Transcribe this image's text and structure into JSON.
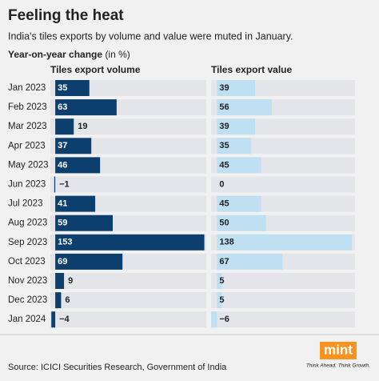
{
  "chart_data": {
    "type": "bar",
    "title": "Feeling the heat",
    "subtitle": "India's tiles exports by volume and value were muted in January.",
    "axis_label": "Year-on-year change",
    "axis_unit": "(in %)",
    "categories": [
      "Jan 2023",
      "Feb 2023",
      "Mar 2023",
      "Apr 2023",
      "May 2023",
      "Jun 2023",
      "Jul 2023",
      "Aug 2023",
      "Sep 2023",
      "Oct 2023",
      "Nov 2023",
      "Dec 2023",
      "Jan 2024"
    ],
    "series": [
      {
        "name": "Tiles export volume",
        "color": "#0d3f6e",
        "xlim": [
          -5,
          155
        ],
        "values": [
          35,
          63,
          19,
          37,
          46,
          -1,
          41,
          59,
          153,
          69,
          9,
          6,
          -4
        ],
        "value_labels": [
          "35",
          "63",
          "19",
          "37",
          "46",
          "−1",
          "41",
          "59",
          "153",
          "69",
          "9",
          "6",
          "−4"
        ]
      },
      {
        "name": "Tiles export value",
        "color": "#bfe0f2",
        "xlim": [
          -6,
          141
        ],
        "values": [
          39,
          56,
          39,
          35,
          45,
          0,
          45,
          50,
          138,
          67,
          5,
          5,
          -6
        ],
        "value_labels": [
          "39",
          "56",
          "39",
          "35",
          "45",
          "0",
          "45",
          "50",
          "138",
          "67",
          "5",
          "5",
          "−6"
        ]
      }
    ],
    "source": "Source: ICICI Securities Research, Government of India",
    "logo": "mint",
    "tagline": "Think Ahead. Think Growth."
  }
}
